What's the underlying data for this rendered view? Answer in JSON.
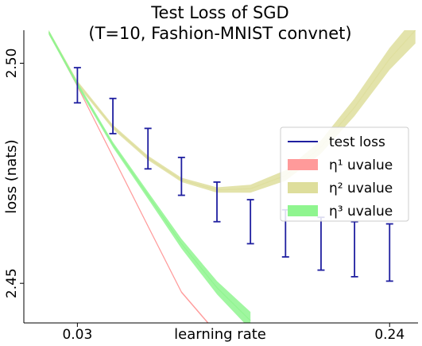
{
  "chart_data": {
    "type": "line",
    "title": "Test Loss of SGD",
    "subtitle": "(T=10, Fashion-MNIST convnet)",
    "xlabel": "learning rate",
    "ylabel": "loss (nats)",
    "x_scale": "log",
    "xlim": [
      0.021,
      0.29
    ],
    "ylim": [
      2.441,
      2.5075
    ],
    "x_ticks": [
      {
        "value": 0.03,
        "label": "0.03"
      },
      {
        "value": 0.24,
        "label": "0.24"
      }
    ],
    "y_ticks": [
      {
        "value": 2.45,
        "label": "2.45"
      },
      {
        "value": 2.5,
        "label": "2.50"
      }
    ],
    "legend_position": "right",
    "legend": [
      {
        "label": "test loss",
        "color": "#1f1fa0",
        "kind": "line"
      },
      {
        "label": "η¹ uvalue",
        "color": "#ff9a9a",
        "kind": "patch"
      },
      {
        "label": "η² uvalue",
        "color": "#dede9c",
        "kind": "patch"
      },
      {
        "label": "η³ uvalue",
        "color": "#8ff58f",
        "kind": "patch"
      }
    ],
    "series": [
      {
        "name": "test loss",
        "kind": "errorbar",
        "color": "#1f1fa0",
        "x": [
          0.03,
          0.038,
          0.048,
          0.06,
          0.076,
          0.095,
          0.12,
          0.152,
          0.19,
          0.24
        ],
        "y": [
          2.4955,
          2.488,
          2.4806,
          2.4743,
          2.4685,
          2.464,
          2.4615,
          2.459,
          2.4575,
          2.457
        ],
        "y_low": [
          2.491,
          2.484,
          2.476,
          2.47,
          2.464,
          2.459,
          2.456,
          2.453,
          2.4515,
          2.4505
        ],
        "y_high": [
          2.499,
          2.492,
          2.4852,
          2.4786,
          2.473,
          2.469,
          2.4667,
          2.465,
          2.464,
          2.4635
        ]
      },
      {
        "name": "η¹ uvalue",
        "kind": "band",
        "color": "#ff9a9a",
        "x": [
          0.0248,
          0.03,
          0.038,
          0.048,
          0.06,
          0.0725
        ],
        "y": [
          2.507,
          2.4948,
          2.4788,
          2.463,
          2.448,
          2.4405
        ],
        "y_low": [
          2.5068,
          2.4946,
          2.4786,
          2.4628,
          2.4478,
          2.4403
        ],
        "y_high": [
          2.5072,
          2.495,
          2.479,
          2.4632,
          2.4482,
          2.4407
        ]
      },
      {
        "name": "η² uvalue",
        "kind": "band",
        "color": "#dede9c",
        "x": [
          0.0248,
          0.03,
          0.038,
          0.048,
          0.06,
          0.076,
          0.095,
          0.12,
          0.152,
          0.19,
          0.24,
          0.285
        ],
        "y": [
          2.507,
          2.4955,
          2.4855,
          2.4785,
          2.4735,
          2.4712,
          2.4715,
          2.4745,
          2.481,
          2.49,
          2.501,
          2.5075
        ],
        "y_low": [
          2.5065,
          2.495,
          2.485,
          2.478,
          2.473,
          2.4706,
          2.4706,
          2.4733,
          2.4795,
          2.488,
          2.4985,
          2.5045
        ],
        "y_high": [
          2.5075,
          2.496,
          2.486,
          2.479,
          2.474,
          2.4718,
          2.4724,
          2.4757,
          2.4825,
          2.492,
          2.5035,
          2.5105
        ]
      },
      {
        "name": "η³ uvalue",
        "kind": "band",
        "color": "#8ff58f",
        "x": [
          0.0248,
          0.03,
          0.038,
          0.048,
          0.06,
          0.076,
          0.095
        ],
        "y": [
          2.507,
          2.4952,
          2.4815,
          2.47,
          2.459,
          2.449,
          2.4415
        ],
        "y_low": [
          2.5065,
          2.4947,
          2.4809,
          2.4692,
          2.4579,
          2.4475,
          2.4395
        ],
        "y_high": [
          2.5075,
          2.4957,
          2.4821,
          2.4708,
          2.4601,
          2.4505,
          2.4435
        ]
      }
    ]
  }
}
